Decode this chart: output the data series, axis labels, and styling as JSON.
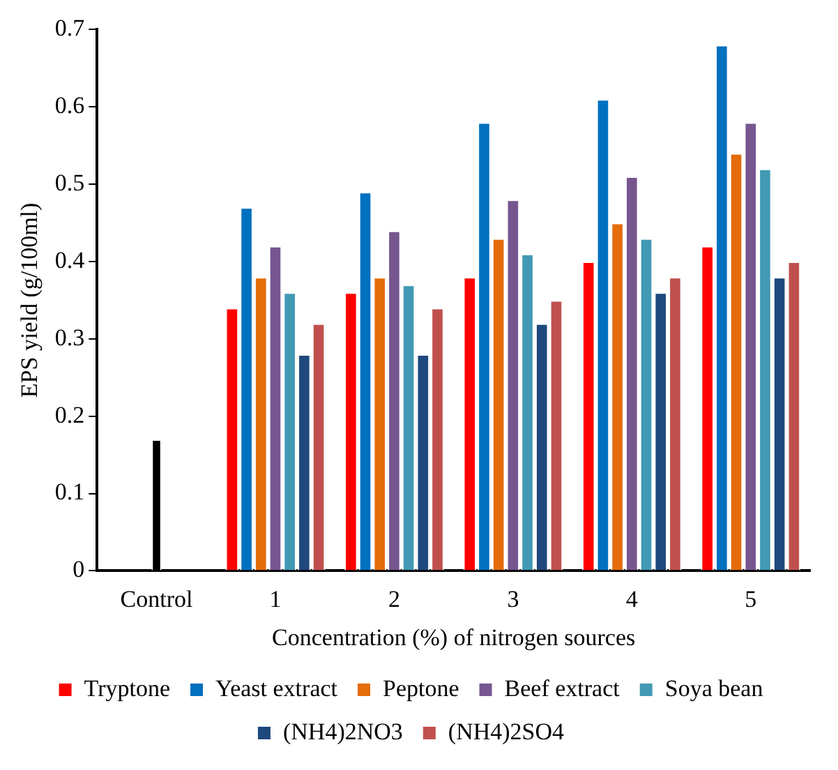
{
  "chart_data": {
    "type": "bar",
    "xlabel": "Concentration (%) of nitrogen sources",
    "ylabel": "EPS yield (g/100ml)",
    "categories": [
      "Control",
      "1",
      "2",
      "3",
      "4",
      "5"
    ],
    "series": [
      {
        "name": "Tryptone",
        "color": "#ff0000",
        "values": [
          0,
          0.34,
          0.36,
          0.38,
          0.4,
          0.42
        ]
      },
      {
        "name": "Yeast extract",
        "color": "#0070c0",
        "values": [
          0,
          0.47,
          0.49,
          0.58,
          0.61,
          0.68
        ]
      },
      {
        "name": "Peptone",
        "color": "#e46c0a",
        "values": [
          0,
          0.38,
          0.38,
          0.43,
          0.45,
          0.54
        ]
      },
      {
        "name": "Beef extract",
        "color": "#76568f",
        "values": [
          0,
          0.42,
          0.44,
          0.48,
          0.51,
          0.58
        ]
      },
      {
        "name": "Soya bean",
        "color": "#4299b3",
        "values": [
          0,
          0.36,
          0.37,
          0.41,
          0.43,
          0.52
        ]
      },
      {
        "name": "(NH4)2NO3",
        "color": "#1f497d",
        "values": [
          0,
          0.28,
          0.28,
          0.32,
          0.36,
          0.38
        ]
      },
      {
        "name": "(NH4)2SO4",
        "color": "#c0504d",
        "values": [
          0,
          0.32,
          0.34,
          0.35,
          0.38,
          0.4
        ]
      },
      {
        "color": "#000000",
        "values": [
          0.17,
          null,
          null,
          null,
          null,
          null
        ]
      }
    ],
    "ylim": [
      0,
      0.7
    ],
    "yticks": [
      0,
      0.1,
      0.2,
      0.3,
      0.4,
      0.5,
      0.6,
      0.7
    ],
    "grid": false,
    "legend": "bottom"
  }
}
